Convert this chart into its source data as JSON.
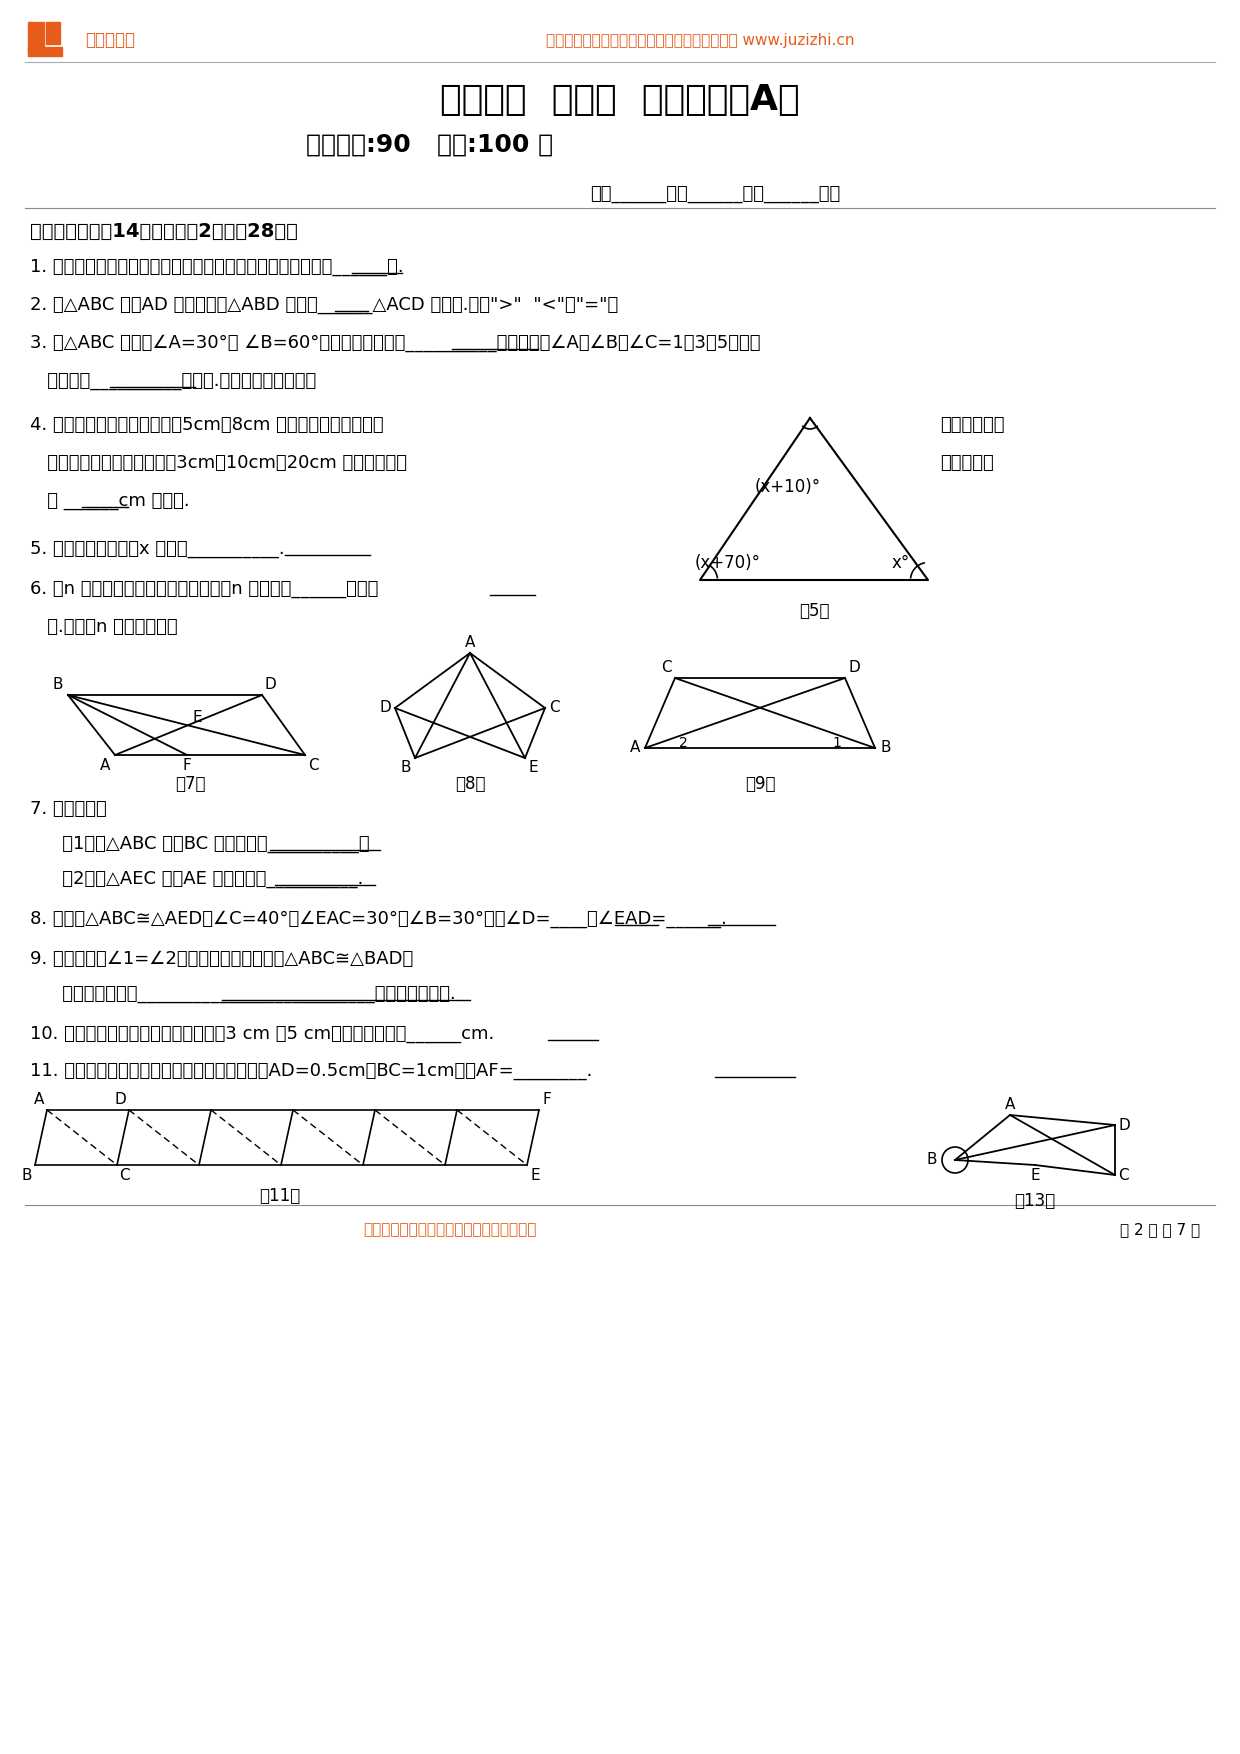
{
  "title": "第十一章  三角形  单元测试（A）",
  "subtitle": "答题时间:90   满分:100 分",
  "header_text": "海量题库、专项训练，进入橘子汁课堂官网下载 www.juzizhi.cn",
  "logo_text": "橘子汁课堂",
  "logo_color": "#E85C1B",
  "section1": "一、填空题（入14小题，每题2分，入28分）",
  "q1": "1. 撞上支撑后的自行车能稳稳地停在地上，是因为三角形具有______性.",
  "q2": "2. 在△ABC 中，AD 是中线，则△ABD 的面积______△ACD 的面积.（填\">\"  \"<\"或\"=\"）",
  "q3": "3. 在△ABC 中，若∠A=30°， ∠B=60°，则这个三角形为__________三角形；若∠A：∠B：∠C=1：3：5，这个",
  "q3b": "   三角形为__________三角形.（按角的分类填写）",
  "q4": "4. 一木工师傅有两根长分别为5cm、8cm 的木条，他要找第三根",
  "q4b": "   钉成一个三角形框架，现有3cm、10cm、20cm 三根木条，他",
  "q4c": "   为 ______cm 的木条.",
  "q4_right1": "木条，将它们",
  "q4_right2": "可以选择长",
  "q5": "5. 如图所示的图形中x 的値是__________.",
  "q6": "6. 过n 边形的一个顶点的对角线可以把n 边形分成______个三角",
  "q6b": "   形.（用含n 的式子表示）",
  "q7": "7. 如图所示：",
  "q7a": "   （1）在△ABC 中，BC 边上的高是__________；",
  "q7b": "   （2）在△AEC 中，AE 边上的高是__________.",
  "q8": "8. 如图，△ABC≅△AED，∠C=40°，∠EAC=30°，∠B=30°，则∠D=____，∠EAD=______.",
  "q9": "9. 如图，已知∠1=∠2，请你添加一个条件使△ABC≅△BAD，",
  "q9b": "   你的添加条件是__________________________（填一个即可）.",
  "q10": "10. 若一个等腰三角形的两边长分别是3 cm 和5 cm，则它的周长是______cm.",
  "q11": "11. 图所示的图案是由全等的图形拼成的，其中AD=0.5cm，BC=1cm，则AF=________.",
  "footer": "海量题库、专项训练，进入橘子汁课堂官网",
  "page_info": "第 2 页 共 7 页",
  "bg_color": "#FFFFFF",
  "orange_color": "#E85C1B"
}
